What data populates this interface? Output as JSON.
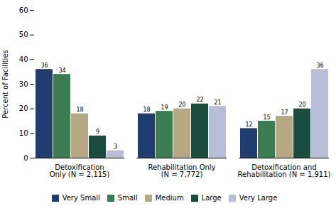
{
  "chart_data": {
    "type": "bar",
    "categories": [
      "Detoxification\nOnly (N = 2,115)",
      "Rehabilitation Only\n(N = 7,772)",
      "Detoxification and\nRehabilitation (N = 1,911)"
    ],
    "series": [
      {
        "name": "Very Small",
        "color": "#1F3D6E",
        "values": [
          36,
          18,
          12
        ]
      },
      {
        "name": "Small",
        "color": "#3A7D52",
        "values": [
          34,
          19,
          15
        ]
      },
      {
        "name": "Medium",
        "color": "#B5A882",
        "values": [
          18,
          20,
          17
        ]
      },
      {
        "name": "Large",
        "color": "#1B4D3E",
        "values": [
          9,
          22,
          20
        ]
      },
      {
        "name": "Very Large",
        "color": "#B8BDD8",
        "values": [
          3,
          21,
          36
        ]
      }
    ],
    "ylabel": "Percent of Facilities",
    "ylim": [
      0,
      60
    ],
    "yticks": [
      0,
      10,
      20,
      30,
      40,
      50,
      60
    ],
    "grid": false,
    "legend": "bottom",
    "data_labels": true
  }
}
